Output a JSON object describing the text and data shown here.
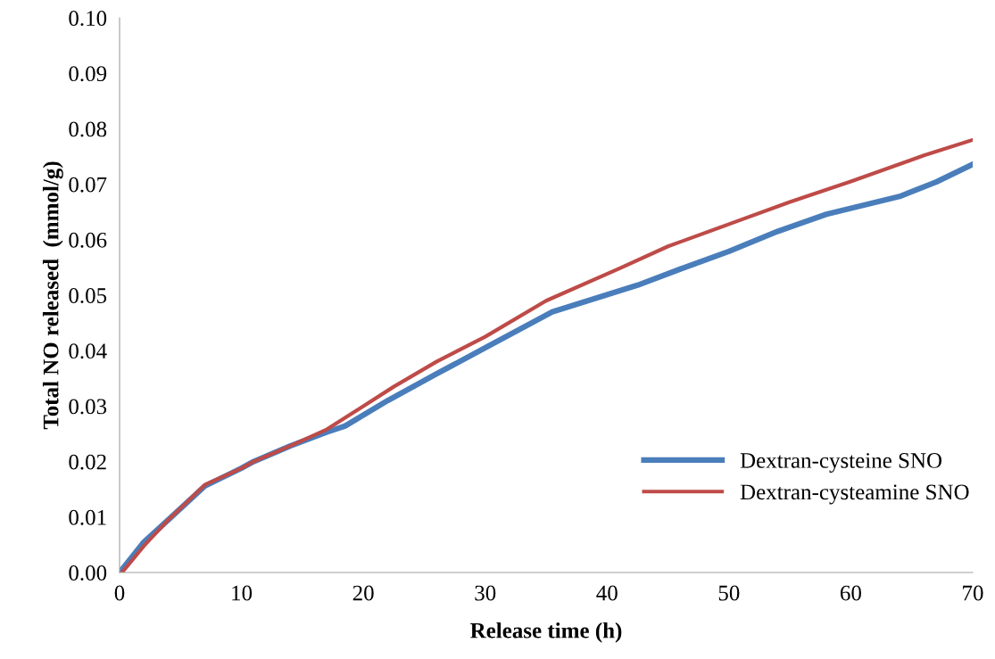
{
  "chart_data": {
    "type": "line",
    "xlabel": "Release time (h)",
    "ylabel": "Total NO released  (mmol/g)",
    "xlim": [
      0,
      70
    ],
    "xticks": [
      0,
      10,
      20,
      30,
      40,
      50,
      60,
      70
    ],
    "ylim": [
      0,
      0.1
    ],
    "yticks": [
      {
        "value": 0,
        "label": "0.00"
      },
      {
        "value": 0.01,
        "label": "0.01"
      },
      {
        "value": 0.02,
        "label": "0.02"
      },
      {
        "value": 0.03,
        "label": "0.03"
      },
      {
        "value": 0.04,
        "label": "0.04"
      },
      {
        "value": 0.05,
        "label": "0.05"
      },
      {
        "value": 0.06,
        "label": "0.06"
      },
      {
        "value": 0.07,
        "label": "0.07"
      },
      {
        "value": 0.08,
        "label": "0.08"
      },
      {
        "value": 0.09,
        "label": "0.09"
      },
      {
        "value": 0.1,
        "label": "0.10"
      }
    ],
    "grid": false,
    "legend": "right",
    "marker": "none",
    "line_style": "solid",
    "series": [
      {
        "name": "Dextran-cysteine SNO",
        "color": "#4a7ebb",
        "x": [
          0,
          2,
          4,
          7,
          10,
          11,
          14,
          17,
          18.5,
          22,
          26,
          30,
          35.5,
          42.5,
          46,
          50,
          54,
          58,
          64,
          67,
          70
        ],
        "values": [
          0,
          0.0055,
          0.0095,
          0.0156,
          0.0188,
          0.02,
          0.0228,
          0.0253,
          0.0264,
          0.031,
          0.0358,
          0.0405,
          0.047,
          0.0518,
          0.0547,
          0.0579,
          0.0615,
          0.0646,
          0.0678,
          0.0704,
          0.0736
        ]
      },
      {
        "name": "Dextran-cysteamine SNO",
        "color": "#be4b48",
        "x": [
          0.2,
          2,
          4,
          7,
          10,
          11,
          14,
          17,
          20,
          22.5,
          26,
          30,
          35,
          41,
          45,
          50,
          55,
          60,
          66,
          70
        ],
        "values": [
          0,
          0.0048,
          0.0095,
          0.0158,
          0.0188,
          0.02,
          0.0228,
          0.0258,
          0.03,
          0.0335,
          0.038,
          0.0425,
          0.049,
          0.0548,
          0.0588,
          0.0628,
          0.0668,
          0.0705,
          0.0752,
          0.078
        ]
      }
    ]
  }
}
